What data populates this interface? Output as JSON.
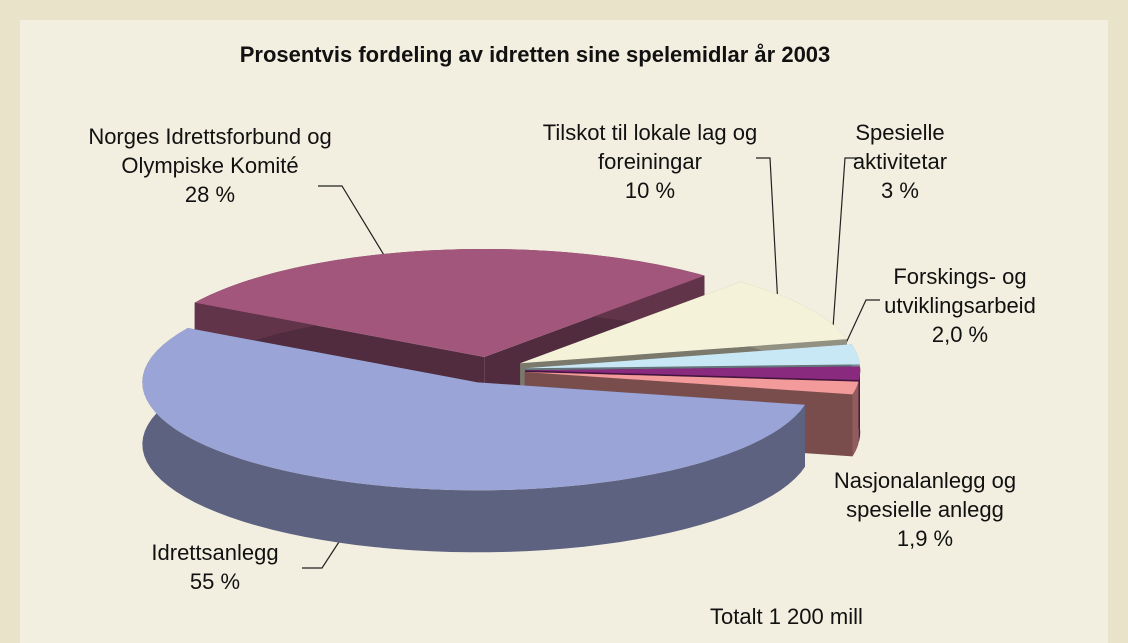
{
  "chart_data": {
    "type": "pie",
    "title": "Prosentvis fordeling av idretten sine spelemidlar år 2003",
    "categories": [
      "Nasjonalanlegg og spesielle anlegg",
      "Forskings- og utviklingsarbeid",
      "Spesielle aktivitetar",
      "Tilskot til lokale lag og foreiningar",
      "Norges Idrettsforbund og Olympiske Komité",
      "Idrettsanlegg"
    ],
    "values": [
      1.9,
      2.0,
      3,
      10,
      28,
      55
    ],
    "value_labels": [
      "1,9 %",
      "2,0 %",
      "3 %",
      "10 %",
      "28 %",
      "55 %"
    ],
    "colors": [
      "#f39a9a",
      "#8a2a7e",
      "#c9e8f5",
      "#f4f2d8",
      "#a2567b",
      "#9ba4d6"
    ],
    "annotation": "Totalt 1 200 mill"
  }
}
